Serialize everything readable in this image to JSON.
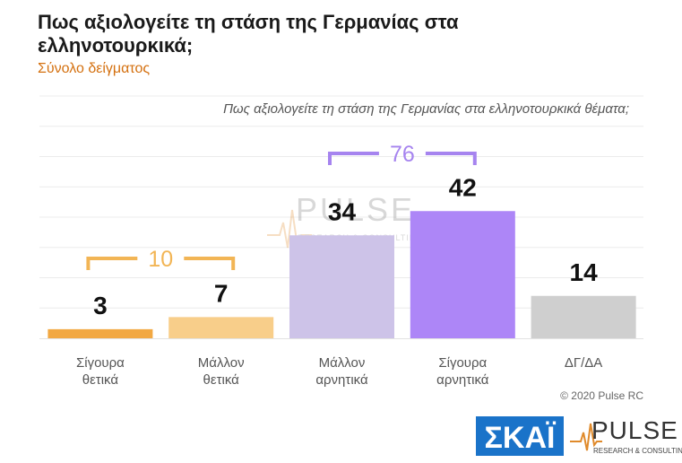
{
  "header": {
    "title": "Πως αξιολογείτε τη στάση της Γερμανίας στα ελληνοτουρκικά;",
    "subtitle": "Σύνολο δείγματος"
  },
  "chart_data": {
    "type": "bar",
    "title": "Πως αξιολογείτε τη στάση της Γερμανίας στα ελληνοτουρκικά θέματα;",
    "categories": [
      [
        "Σίγουρα",
        "θετικά"
      ],
      [
        "Μάλλον",
        "θετικά"
      ],
      [
        "Μάλλον",
        "αρνητικά"
      ],
      [
        "Σίγουρα",
        "αρνητικά"
      ],
      [
        "ΔΓ/ΔΑ"
      ]
    ],
    "values": [
      3,
      7,
      34,
      42,
      14
    ],
    "colors": [
      "#f2a842",
      "#f8ce8a",
      "#cdc3e8",
      "#ad86f7",
      "#cfcfcf"
    ],
    "ylim": [
      0,
      80
    ],
    "grid": true,
    "groups": [
      {
        "label": "10",
        "from": 0,
        "to": 1,
        "color": "#f2b555"
      },
      {
        "label": "76",
        "from": 2,
        "to": 3,
        "color": "#a684ef"
      }
    ]
  },
  "watermark": {
    "brand": "PULSE",
    "tagline": "RESEARCH & CONSULTING"
  },
  "footer": {
    "copyright": "© 2020 Pulse RC",
    "logo_skai": "ΣΚΑΪ",
    "logo_pulse": "PULSE",
    "logo_pulse_tagline": "RESEARCH & CONSULTING"
  }
}
